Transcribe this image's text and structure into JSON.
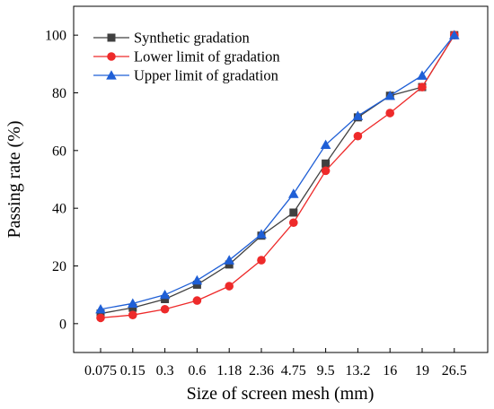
{
  "chart_data": {
    "type": "line",
    "xlabel": "Size of screen mesh (mm)",
    "ylabel": "Passing rate (%)",
    "categories": [
      "0.075",
      "0.15",
      "0.3",
      "0.6",
      "1.18",
      "2.36",
      "4.75",
      "9.5",
      "13.2",
      "16",
      "19",
      "26.5"
    ],
    "ylim": [
      -10,
      110
    ],
    "yticks": [
      0,
      20,
      40,
      60,
      80,
      100
    ],
    "grid": false,
    "legend_position": "top-left",
    "series": [
      {
        "name": "Synthetic gradation",
        "color": "#404040",
        "marker": "square",
        "values": [
          3.5,
          5.5,
          8.5,
          13.5,
          20.5,
          30.5,
          38.5,
          55.5,
          71.5,
          79,
          82,
          100
        ]
      },
      {
        "name": "Lower limit of gradation",
        "color": "#ee2a2a",
        "marker": "circle",
        "values": [
          2,
          3,
          5,
          8,
          13,
          22,
          35,
          53,
          65,
          73,
          82,
          100
        ]
      },
      {
        "name": "Upper limit of gradation",
        "color": "#1f5fd6",
        "marker": "triangle",
        "values": [
          5,
          7,
          10,
          15,
          22,
          31,
          45,
          62,
          72,
          79,
          86,
          100
        ]
      }
    ]
  }
}
